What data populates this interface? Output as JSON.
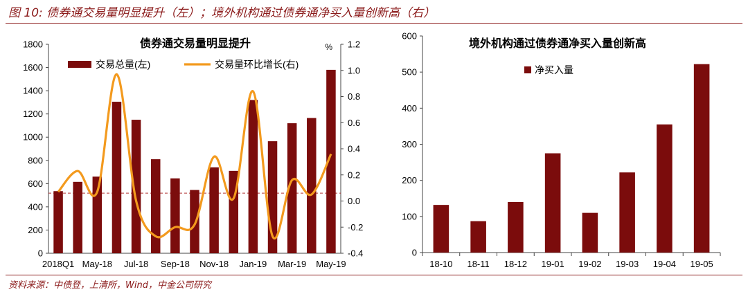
{
  "figure_title": "图 10:  债券通交易量明显提升（左）；境外机构通过债券通净买入量创新高（右）",
  "source": "资料来源：中债登，上清所，Wind，中金公司研究",
  "colors": {
    "bar": "#7b0c0c",
    "line": "#f39a1e",
    "accent": "#8b1a1a",
    "ref": "#b03030"
  },
  "chart_data": [
    {
      "type": "bar+line",
      "title": "债券通交易量明显提升",
      "categories": [
        "2018Q1",
        "",
        "May-18",
        "",
        "Jul-18",
        "",
        "Sep-18",
        "",
        "Nov-18",
        "",
        "Jan-19",
        "",
        "Mar-19",
        "",
        "May-19"
      ],
      "x_tick_labels": [
        "2018Q1",
        "May-18",
        "Jul-18",
        "Sep-18",
        "Nov-18",
        "Jan-19",
        "Mar-19",
        "May-19"
      ],
      "series": [
        {
          "name": "交易总量(左)",
          "type": "bar",
          "axis": "left",
          "values": [
            535,
            615,
            660,
            1305,
            1150,
            810,
            645,
            545,
            740,
            710,
            1320,
            965,
            1120,
            1165,
            1580
          ]
        },
        {
          "name": "交易量环比增长(右)",
          "type": "line",
          "axis": "right",
          "values": [
            0.07,
            0.23,
            0.07,
            0.97,
            0.0,
            -0.27,
            -0.2,
            -0.18,
            0.34,
            0.02,
            0.84,
            -0.27,
            0.16,
            0.05,
            0.36
          ]
        }
      ],
      "reference_line": {
        "axis": "right",
        "value": 0.06
      },
      "left_axis": {
        "ylim": [
          0,
          1800
        ],
        "ticks": [
          "0",
          "200",
          "400",
          "600",
          "800",
          "1000",
          "1200",
          "1400",
          "1600",
          "1800"
        ]
      },
      "right_axis": {
        "unit": "%",
        "ylim": [
          -0.4,
          1.2
        ],
        "ticks": [
          "-0.4",
          "-0.2",
          "0.0",
          "0.2",
          "0.4",
          "0.6",
          "0.8",
          "1.0",
          "1.2"
        ]
      },
      "legend_position": "top-left",
      "grid": false
    },
    {
      "type": "bar",
      "title": "境外机构通过债券通净买入量创新高",
      "categories": [
        "18-10",
        "18-11",
        "18-12",
        "19-01",
        "19-02",
        "19-03",
        "19-04",
        "19-05"
      ],
      "series": [
        {
          "name": "净买入量",
          "values": [
            132,
            87,
            140,
            275,
            110,
            222,
            355,
            522
          ]
        }
      ],
      "left_axis": {
        "ylim": [
          0,
          600
        ],
        "ticks": [
          "0",
          "100",
          "200",
          "300",
          "400",
          "500",
          "600"
        ]
      },
      "legend_position": "top-center",
      "grid": false
    }
  ]
}
